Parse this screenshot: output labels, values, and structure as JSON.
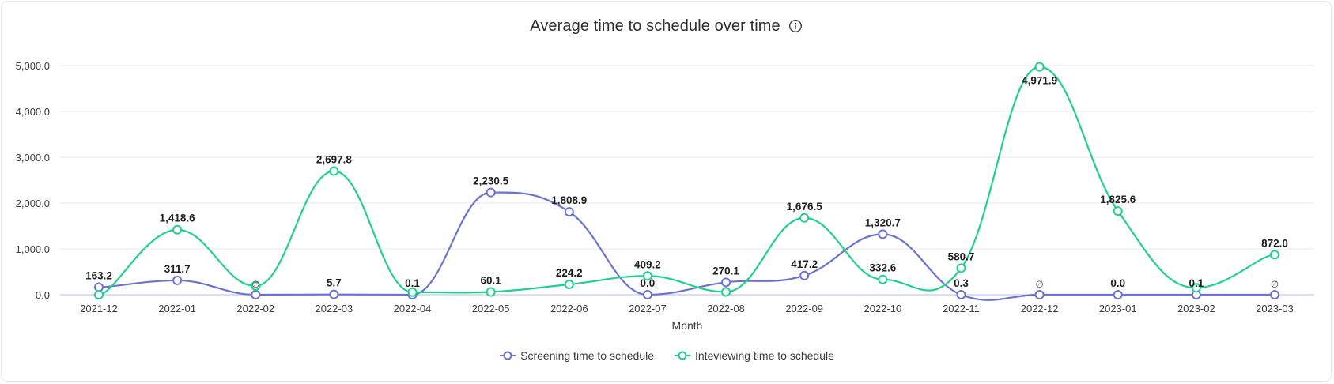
{
  "title": "Average time to schedule over time",
  "info_icon": "info-circle-icon",
  "colors": {
    "screening": "#6b73cf",
    "interviewing": "#22d08e",
    "grid": "#ececef",
    "baseline": "#cfd3f3"
  },
  "legend": {
    "items": [
      {
        "label": "Screening time to schedule",
        "color": "#6b73cf"
      },
      {
        "label": "Inteviewing time to schedule",
        "color": "#22d08e"
      }
    ]
  },
  "chart_data": {
    "type": "line",
    "title": "Average time to schedule over time",
    "xlabel": "Month",
    "ylabel": "",
    "ylim": [
      0,
      5000
    ],
    "yticks": [
      "0.0",
      "1,000.0",
      "2,000.0",
      "3,000.0",
      "4,000.0",
      "5,000.0"
    ],
    "grid": true,
    "legend_position": "bottom",
    "smooth": true,
    "categories": [
      "2021-12",
      "2022-01",
      "2022-02",
      "2022-03",
      "2022-04",
      "2022-05",
      "2022-06",
      "2022-07",
      "2022-08",
      "2022-09",
      "2022-10",
      "2022-11",
      "2022-12",
      "2023-01",
      "2023-02",
      "2023-03"
    ],
    "series": [
      {
        "name": "Screening time to schedule",
        "values": [
          163.2,
          311.7,
          null,
          5.7,
          0.1,
          2230.5,
          1808.9,
          0.0,
          270.1,
          417.2,
          1320.7,
          0.3,
          null,
          0.0,
          0.1,
          null
        ],
        "labels": [
          "163.2",
          "311.7",
          "∅",
          "5.7",
          "0.1",
          "2,230.5",
          "1,808.9",
          "0.0",
          "270.1",
          "417.2",
          "1,320.7",
          "0.3",
          "∅",
          "0.0",
          "0.1",
          "∅"
        ]
      },
      {
        "name": "Inteviewing time to schedule",
        "values": [
          0,
          1418.6,
          190,
          2697.8,
          55,
          60.1,
          224.2,
          409.2,
          60,
          1676.5,
          332.6,
          580.7,
          4971.9,
          1825.6,
          150,
          872.0
        ],
        "labels": [
          "",
          "1,418.6",
          "",
          "2,697.8",
          "",
          "60.1",
          "224.2",
          "409.2",
          "",
          "1,676.5",
          "332.6",
          "580.7",
          "4,971.9",
          "1,825.6",
          "",
          "872.0"
        ]
      }
    ]
  }
}
